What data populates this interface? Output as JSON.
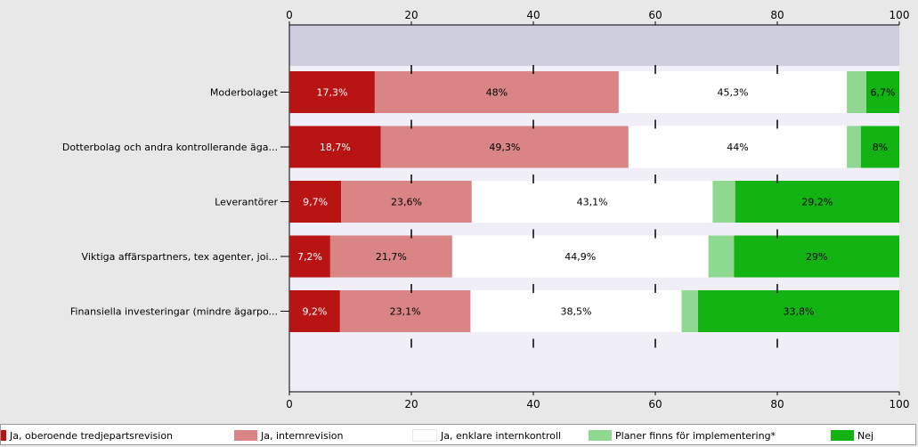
{
  "chart_data": {
    "type": "bar",
    "orientation": "horizontal",
    "stacked": true,
    "xlim": [
      0,
      100
    ],
    "xticks": [
      "0",
      "20",
      "40",
      "60",
      "80",
      "100"
    ],
    "categories": [
      "Moderbolaget",
      "Dotterbolag och andra kontrollerande äga...",
      "Leverantörer",
      "Viktiga affärspartners, tex agenter, joi...",
      "Finansiella investeringar (mindre ägarpo..."
    ],
    "series": [
      {
        "name": "Ja, oberoende tredjepartsrevision",
        "color": "#b81414",
        "values": [
          14,
          15,
          8.5,
          6.7,
          8.3
        ],
        "labels": [
          "17,3%",
          "18,7%",
          "9,7%",
          "7,2%",
          "9,2%"
        ],
        "label_color": "#ffffff"
      },
      {
        "name": "Ja, internrevision",
        "color": "#d98585",
        "values": [
          40,
          40.6,
          21.4,
          20,
          21.4
        ],
        "labels": [
          "48%",
          "49,3%",
          "23,6%",
          "21,7%",
          "23,1%"
        ],
        "label_color": "#000000"
      },
      {
        "name": "Ja, enklare internkontroll",
        "color": "#ffffff",
        "values": [
          37.4,
          35.8,
          39.5,
          42,
          34.6
        ],
        "labels": [
          "45,3%",
          "44%",
          "43,1%",
          "44,9%",
          "38,5%"
        ],
        "label_color": "#000000"
      },
      {
        "name": "Planer finns för implementering*",
        "color": "#8fd88f",
        "values": [
          3.2,
          2.3,
          3.7,
          4.2,
          2.7
        ],
        "labels": [
          "",
          "",
          "",
          "",
          ""
        ],
        "label_color": "#000000"
      },
      {
        "name": "Nej",
        "color": "#12b312",
        "values": [
          5.4,
          6.3,
          26.9,
          27.1,
          33
        ],
        "labels": [
          "6,7%",
          "8%",
          "29,2%",
          "29%",
          "33,8%"
        ],
        "label_color": "#000000"
      }
    ],
    "grid": false,
    "legend_position": "bottom"
  }
}
